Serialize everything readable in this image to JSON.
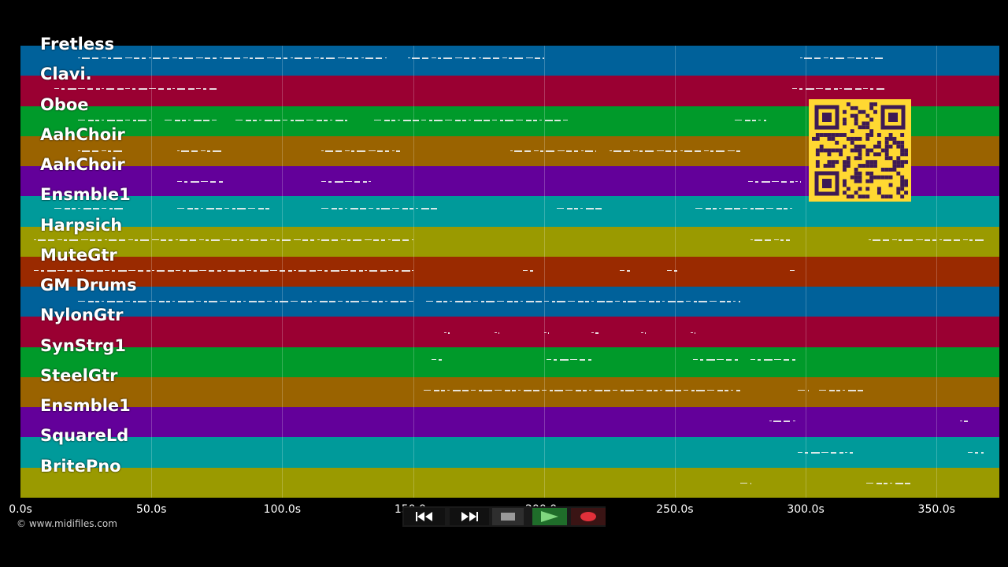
{
  "tracks": [
    {
      "name": "Fretless",
      "color": "#00619a"
    },
    {
      "name": "Clavi.",
      "color": "#9a0032"
    },
    {
      "name": "Oboe",
      "color": "#009a2a"
    },
    {
      "name": "AahChoir",
      "color": "#9a6300"
    },
    {
      "name": "AahChoir",
      "color": "#63009a"
    },
    {
      "name": "Ensmble1",
      "color": "#009a9a"
    },
    {
      "name": "Harpsich",
      "color": "#9a9a00"
    },
    {
      "name": "MuteGtr",
      "color": "#9a2a00"
    },
    {
      "name": "GM Drums",
      "color": "#00619a"
    },
    {
      "name": "NylonGtr",
      "color": "#9a0032"
    },
    {
      "name": "SynStrg1",
      "color": "#009a2a"
    },
    {
      "name": "SteelGtr",
      "color": "#9a6300"
    },
    {
      "name": "Ensmble1",
      "color": "#63009a"
    },
    {
      "name": "SquareLd",
      "color": "#009a9a"
    },
    {
      "name": "BritePno",
      "color": "#9a9a00"
    }
  ],
  "timeline": {
    "max_seconds": 374,
    "ticks": [
      "0.0s",
      "50.0s",
      "100.0s",
      "150.0s",
      "200.0s",
      "250.0s",
      "300.0s",
      "350.0s"
    ],
    "tick_values": [
      0,
      50,
      100,
      150,
      200,
      250,
      300,
      350
    ]
  },
  "note_segments": [
    [
      [
        22,
        140
      ],
      [
        148,
        200
      ],
      [
        298,
        330
      ]
    ],
    [
      [
        13,
        75
      ],
      [
        295,
        330
      ]
    ],
    [
      [
        22,
        50
      ],
      [
        55,
        75
      ],
      [
        82,
        125
      ],
      [
        135,
        210
      ],
      [
        273,
        285
      ]
    ],
    [
      [
        22,
        40
      ],
      [
        60,
        78
      ],
      [
        115,
        145
      ],
      [
        187,
        220
      ],
      [
        225,
        275
      ]
    ],
    [
      [
        60,
        78
      ],
      [
        115,
        134
      ],
      [
        278,
        298
      ]
    ],
    [
      [
        13,
        40
      ],
      [
        60,
        96
      ],
      [
        115,
        160
      ],
      [
        205,
        222
      ],
      [
        258,
        296
      ]
    ],
    [
      [
        5,
        150
      ],
      [
        279,
        294
      ],
      [
        324,
        368
      ]
    ],
    [
      [
        5,
        150
      ],
      [
        192,
        196
      ],
      [
        229,
        234
      ],
      [
        247,
        251
      ],
      [
        294,
        296
      ]
    ],
    [
      [
        22,
        150
      ],
      [
        155,
        275
      ]
    ],
    [
      [
        162,
        164
      ],
      [
        181,
        183
      ],
      [
        200,
        202
      ],
      [
        218,
        221
      ],
      [
        237,
        239
      ],
      [
        256,
        258
      ]
    ],
    [
      [
        157,
        162
      ],
      [
        201,
        218
      ],
      [
        257,
        274
      ],
      [
        279,
        296
      ]
    ],
    [
      [
        154,
        275
      ],
      [
        297,
        301
      ],
      [
        305,
        322
      ]
    ],
    [
      [
        286,
        296
      ],
      [
        359,
        362
      ]
    ],
    [
      [
        297,
        318
      ],
      [
        362,
        368
      ]
    ],
    [
      [
        275,
        279
      ],
      [
        323,
        340
      ]
    ]
  ],
  "transport": {
    "rewind_icon": "rewind-icon",
    "forward_icon": "fast-forward-icon",
    "stop_icon": "stop-icon",
    "play_icon": "play-icon",
    "record_icon": "record-icon"
  },
  "copyright": "© www.midifiles.com"
}
